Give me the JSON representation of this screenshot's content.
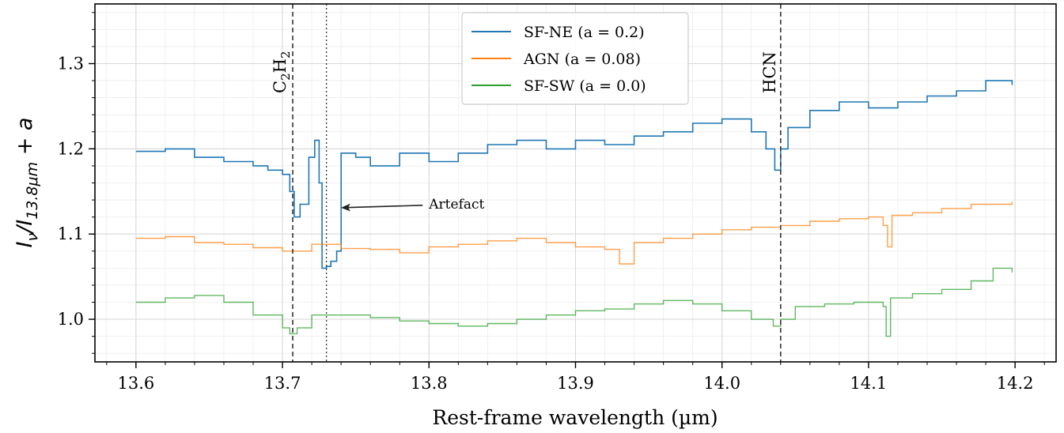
{
  "chart_data": {
    "type": "line",
    "title": "",
    "xlabel": "Rest-frame wavelength (µm)",
    "ylabel": "Iν/I13.8µm + a",
    "xlim": [
      13.572,
      14.228
    ],
    "ylim": [
      0.95,
      1.37
    ],
    "xticks": [
      13.6,
      13.7,
      13.8,
      13.9,
      14.0,
      14.1,
      14.2
    ],
    "xtick_labels": [
      "13.6",
      "13.7",
      "13.8",
      "13.9",
      "14.0",
      "14.1",
      "14.2"
    ],
    "yticks": [
      1.0,
      1.1,
      1.2,
      1.3
    ],
    "ytick_labels": [
      "1.0",
      "1.1",
      "1.2",
      "1.3"
    ],
    "grid": true,
    "legend_position": "top-center",
    "series": [
      {
        "name": "SF-NE (a = 0.2)",
        "color": "#1f77b4",
        "x": [
          13.6,
          13.62,
          13.64,
          13.66,
          13.68,
          13.69,
          13.7,
          13.705,
          13.708,
          13.712,
          13.718,
          13.722,
          13.725,
          13.727,
          13.73,
          13.733,
          13.737,
          13.74,
          13.75,
          13.76,
          13.78,
          13.8,
          13.82,
          13.84,
          13.86,
          13.88,
          13.9,
          13.92,
          13.94,
          13.96,
          13.98,
          14.0,
          14.02,
          14.03,
          14.036,
          14.04,
          14.045,
          14.06,
          14.08,
          14.1,
          14.12,
          14.14,
          14.16,
          14.18,
          14.198
        ],
        "y": [
          1.197,
          1.2,
          1.19,
          1.185,
          1.18,
          1.175,
          1.17,
          1.15,
          1.12,
          1.135,
          1.19,
          1.21,
          1.16,
          1.06,
          1.062,
          1.068,
          1.08,
          1.195,
          1.19,
          1.18,
          1.195,
          1.185,
          1.195,
          1.205,
          1.21,
          1.2,
          1.21,
          1.205,
          1.215,
          1.22,
          1.23,
          1.235,
          1.22,
          1.2,
          1.175,
          1.2,
          1.225,
          1.245,
          1.255,
          1.248,
          1.255,
          1.262,
          1.268,
          1.28,
          1.275
        ]
      },
      {
        "name": "AGN (a = 0.08)",
        "color": "#ff7f0e",
        "x": [
          13.6,
          13.62,
          13.64,
          13.66,
          13.68,
          13.7,
          13.72,
          13.74,
          13.76,
          13.78,
          13.8,
          13.82,
          13.84,
          13.86,
          13.88,
          13.9,
          13.92,
          13.93,
          13.94,
          13.96,
          13.98,
          14.0,
          14.02,
          14.04,
          14.06,
          14.08,
          14.1,
          14.11,
          14.113,
          14.116,
          14.13,
          14.15,
          14.17,
          14.198
        ],
        "y": [
          1.095,
          1.097,
          1.09,
          1.088,
          1.084,
          1.08,
          1.088,
          1.083,
          1.082,
          1.078,
          1.085,
          1.088,
          1.092,
          1.095,
          1.09,
          1.085,
          1.082,
          1.065,
          1.09,
          1.095,
          1.1,
          1.105,
          1.108,
          1.11,
          1.115,
          1.118,
          1.12,
          1.11,
          1.085,
          1.122,
          1.125,
          1.13,
          1.135,
          1.138
        ]
      },
      {
        "name": "SF-SW (a = 0.0)",
        "color": "#2ca02c",
        "x": [
          13.6,
          13.62,
          13.64,
          13.66,
          13.68,
          13.7,
          13.705,
          13.71,
          13.72,
          13.74,
          13.76,
          13.78,
          13.8,
          13.82,
          13.84,
          13.86,
          13.88,
          13.9,
          13.92,
          13.94,
          13.96,
          13.98,
          14.0,
          14.02,
          14.035,
          14.04,
          14.05,
          14.07,
          14.09,
          14.11,
          14.112,
          14.115,
          14.13,
          14.15,
          14.17,
          14.185,
          14.198
        ],
        "y": [
          1.02,
          1.025,
          1.028,
          1.02,
          1.005,
          0.99,
          0.983,
          0.99,
          1.005,
          1.005,
          1.002,
          0.998,
          0.995,
          0.992,
          0.995,
          1.0,
          1.005,
          1.01,
          1.012,
          1.018,
          1.022,
          1.018,
          1.01,
          1.0,
          0.992,
          1.0,
          1.015,
          1.018,
          1.02,
          1.015,
          0.98,
          1.025,
          1.03,
          1.035,
          1.045,
          1.06,
          1.055
        ]
      }
    ],
    "vlines": [
      {
        "x": 13.707,
        "style": "dashed",
        "label": "C2H2"
      },
      {
        "x": 13.73,
        "style": "dotted",
        "label": ""
      },
      {
        "x": 14.04,
        "style": "dashed",
        "label": "HCN"
      }
    ],
    "annotations": [
      {
        "text": "Artefact",
        "x": 13.8,
        "y": 1.13,
        "arrow_to_x": 13.741,
        "arrow_to_y": 1.13
      }
    ]
  }
}
